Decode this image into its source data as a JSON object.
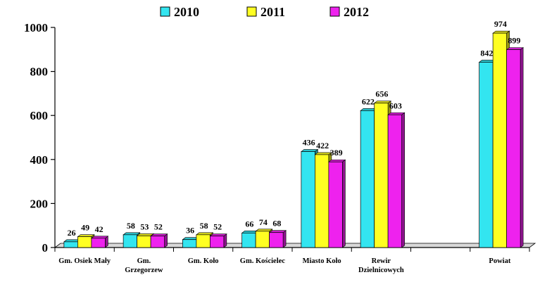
{
  "chart_data": {
    "type": "bar",
    "categories": [
      [
        "Gm. Osiek Mały"
      ],
      [
        "Gm.",
        "Grzegorzew"
      ],
      [
        "Gm. Koło"
      ],
      [
        "Gm. Kościelec"
      ],
      [
        "Miasto Koło"
      ],
      [
        "Rewir",
        "Dzielnicowych"
      ],
      [
        ""
      ],
      [
        "Powiat"
      ]
    ],
    "series": [
      {
        "name": "2010",
        "color": "#33E5F0",
        "values": [
          26,
          58,
          36,
          66,
          436,
          622,
          null,
          842
        ]
      },
      {
        "name": "2011",
        "color": "#FFFF22",
        "values": [
          49,
          53,
          58,
          74,
          422,
          656,
          null,
          974
        ]
      },
      {
        "name": "2012",
        "color": "#EE22EE",
        "values": [
          42,
          52,
          52,
          68,
          389,
          603,
          null,
          899
        ]
      }
    ],
    "ylim": [
      0,
      1000
    ],
    "yticks": [
      0,
      200,
      400,
      600,
      800,
      1000
    ],
    "grid": false,
    "legend_position": "top"
  }
}
